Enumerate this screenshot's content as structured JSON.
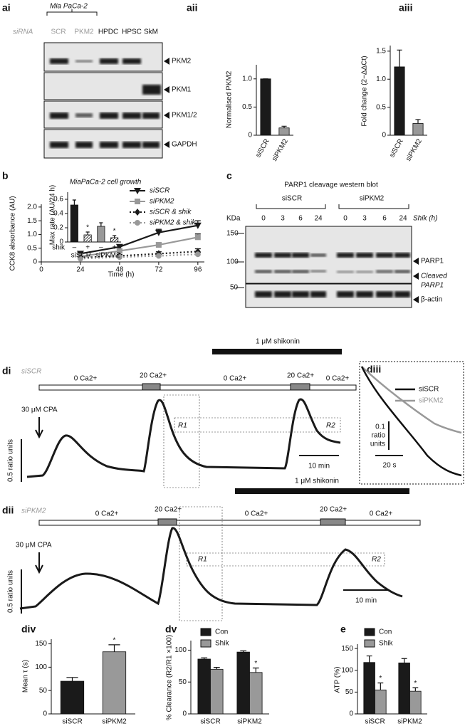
{
  "figure": {
    "ai": {
      "panel": "ai",
      "cell_line": "Mia PaCa-2",
      "row_label": "siRNA",
      "lanes": [
        "SCR",
        "PKM2",
        "HPDC",
        "HPSC",
        "SkM"
      ],
      "bands": [
        "PKM2",
        "PKM1",
        "PKM1/2",
        "GAPDH"
      ]
    },
    "c": {
      "panel": "c",
      "title": "PARP1 cleavage western blot",
      "groups": [
        "siSCR",
        "siPKM2"
      ],
      "kda_label": "KDa",
      "time_label": "Shik (h)",
      "times": [
        0,
        3,
        6,
        24,
        0,
        3,
        6,
        24
      ],
      "markers": [
        150,
        100,
        50
      ],
      "bands": [
        "PARP1",
        "Cleaved",
        "PARP1",
        "β-actin"
      ]
    },
    "di": {
      "panel": "di",
      "condition": "siSCR",
      "treatment": "1 μM shikonin",
      "drug": "30 μM CPA",
      "solutions": [
        "0 Ca2+",
        "20 Ca2+",
        "0 Ca2+",
        "20 Ca2+",
        "0 Ca2+"
      ],
      "regions": [
        "R1",
        "R2"
      ],
      "scale_y": "0.5 ratio units",
      "scale_x": "10 min"
    },
    "dii": {
      "panel": "dii",
      "condition": "siPKM2",
      "treatment": "1 μM shikonin",
      "drug": "30 μM CPA",
      "solutions": [
        "0 Ca2+",
        "20 Ca2+",
        "0 Ca2+",
        "20 Ca2+",
        "0 Ca2+"
      ],
      "regions": [
        "R1",
        "R2"
      ],
      "scale_y": "0.5 ratio units",
      "scale_x": "10 min"
    },
    "diii": {
      "panel": "diii",
      "legend": [
        "siSCR",
        "siPKM2"
      ],
      "scale_y": [
        "0.1",
        "ratio",
        "units"
      ],
      "scale_x": "20 s"
    }
  },
  "chart_data": [
    {
      "type": "bar",
      "panel": "aii",
      "ylabel": "Normalised PKM2",
      "categories": [
        "siSCR",
        "siPKM2"
      ],
      "values": [
        1.0,
        0.13
      ],
      "errors": [
        0,
        0.03
      ],
      "colors": [
        "#1a1a1a",
        "#999999"
      ],
      "ylim": [
        0,
        1.25
      ],
      "yticks": [
        0,
        0.5,
        {
          "value": 1,
          "label": "1.0"
        }
      ]
    },
    {
      "type": "bar",
      "panel": "aiii",
      "ylabel": "Fold change (2−ΔΔCt)",
      "categories": [
        "siSCR",
        "siPKM2"
      ],
      "values": [
        1.22,
        0.21
      ],
      "errors": [
        0.3,
        0.07
      ],
      "colors": [
        "#1a1a1a",
        "#999999"
      ],
      "ylim": [
        0,
        1.6
      ],
      "yticks": [
        0,
        0.5,
        {
          "value": 1,
          "label": "1.0"
        },
        1.5
      ]
    },
    {
      "type": "line",
      "panel": "b",
      "ylabel": "CCK8 absorbance (AU)",
      "xlabel": "Time (h)",
      "x": [
        24,
        48,
        72,
        96
      ],
      "xlim": [
        0,
        100
      ],
      "xticks": [
        0,
        24,
        48,
        72,
        96
      ],
      "ylim": [
        0,
        2.1
      ],
      "yticks": [
        0,
        0.5,
        {
          "value": 1,
          "label": "1.0"
        },
        1.5,
        {
          "value": 2,
          "label": "2.0"
        }
      ],
      "series": [
        {
          "name": "siSCR",
          "color": "#1a1a1a",
          "marker": "triangle",
          "dash": "solid",
          "values": [
            0.3,
            0.55,
            1.07,
            1.33
          ],
          "errors": [
            0.06,
            0.08,
            0.12,
            0.17
          ]
        },
        {
          "name": "siPKM2",
          "color": "#999999",
          "marker": "square",
          "dash": "solid",
          "values": [
            0.2,
            0.4,
            0.62,
            0.9
          ],
          "errors": [
            0.05,
            0.06,
            0.08,
            0.12
          ]
        },
        {
          "name": "siSCR & shik",
          "color": "#1a1a1a",
          "marker": "diamond",
          "dash": "dotted",
          "values": [
            0.15,
            0.22,
            0.3,
            0.38
          ],
          "errors": [
            0.04,
            0.05,
            0.07,
            0.1
          ]
        },
        {
          "name": "siPKM2 & shik",
          "color": "#999999",
          "marker": "circle",
          "dash": "dotted",
          "values": [
            0.12,
            0.18,
            0.22,
            0.28
          ],
          "errors": [
            0.03,
            0.04,
            0.05,
            0.07
          ]
        }
      ]
    },
    {
      "type": "bar",
      "title": "MiaPaCa-2 cell growth",
      "ylabel": "Max rate (AU/24 h)",
      "categories": [
        "–",
        "+",
        "–",
        "+"
      ],
      "groups": [
        "siSCR",
        "siPKM2"
      ],
      "group_label": "shik",
      "values": [
        0.52,
        0.1,
        0.22,
        0.06
      ],
      "errors": [
        0.07,
        0.04,
        0.05,
        0.03
      ],
      "colors": [
        "#1a1a1a",
        "#1a1a1a",
        "#999999",
        "#999999"
      ],
      "hatch": [
        false,
        true,
        false,
        true
      ],
      "annotations": [
        {
          "text": "*",
          "category": 1
        },
        {
          "text": "*",
          "category": 3
        }
      ],
      "ylim": [
        0,
        0.7
      ],
      "yticks": [
        0,
        0.2,
        0.4,
        0.6
      ]
    },
    {
      "type": "bar",
      "panel": "div",
      "ylabel": "Mean τ (s)",
      "categories": [
        "siSCR",
        "siPKM2"
      ],
      "values": [
        70,
        133
      ],
      "errors": [
        8,
        15
      ],
      "colors": [
        "#1a1a1a",
        "#999999"
      ],
      "annotations": [
        {
          "text": "*",
          "category": 1
        }
      ],
      "ylim": [
        0,
        160
      ],
      "yticks": [
        0,
        50,
        100,
        150
      ]
    },
    {
      "type": "bar",
      "panel": "dv",
      "ylabel": "% Clearance (R2/R1 ×100)",
      "categories": [
        "siSCR",
        "siPKM2"
      ],
      "series": [
        {
          "name": "Con",
          "color": "#1a1a1a",
          "values": [
            86,
            97
          ],
          "errors": [
            2,
            2
          ]
        },
        {
          "name": "Shik",
          "color": "#999999",
          "values": [
            70,
            65
          ],
          "errors": [
            3,
            7
          ]
        }
      ],
      "annotations": [
        {
          "text": "*",
          "category": 1,
          "series": 1
        }
      ],
      "ylim": [
        0,
        115
      ],
      "yticks": [
        0,
        50,
        100
      ]
    },
    {
      "type": "bar",
      "panel": "e",
      "ylabel": "ATP (%)",
      "categories": [
        "siSCR",
        "siPKM2"
      ],
      "series": [
        {
          "name": "Con",
          "color": "#1a1a1a",
          "values": [
            118,
            117
          ],
          "errors": [
            15,
            10
          ]
        },
        {
          "name": "Shik",
          "color": "#999999",
          "values": [
            55,
            52
          ],
          "errors": [
            16,
            8
          ]
        }
      ],
      "annotations": [
        {
          "text": "*",
          "category": 0,
          "series": 1
        },
        {
          "text": "*",
          "category": 1,
          "series": 1
        }
      ],
      "ylim": [
        0,
        160
      ],
      "yticks": [
        0,
        50,
        100,
        150
      ]
    }
  ]
}
